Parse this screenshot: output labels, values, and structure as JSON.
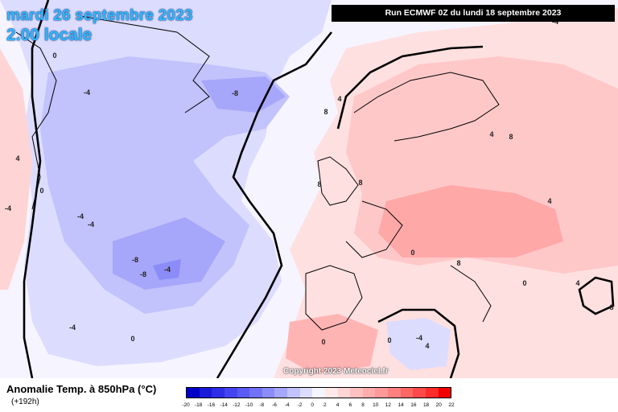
{
  "header": {
    "date_title": "mardi 26 septembre 2023",
    "time_title": "2.00 locale",
    "run_info": "Run ECMWF 0Z du lundi 18 septembre 2023"
  },
  "map": {
    "copyright": "Copyright 2023 Meteociel.fr",
    "contour_labels": [
      "0",
      "-4",
      "-8",
      "4",
      "8",
      "-4",
      "-4",
      "-8",
      "-8",
      "-4",
      "-4",
      "0",
      "0",
      "8",
      "8",
      "0",
      "8",
      "8",
      "4",
      "4",
      "-4",
      "4",
      "0",
      "-4",
      "0",
      "0",
      "-4",
      "4",
      "8",
      "4"
    ]
  },
  "legend": {
    "title": "Anomalie Temp. à 850hPa (°C)",
    "forecast_hour": "(+192h)",
    "tick_labels": [
      "-20",
      "-18",
      "-16",
      "-14",
      "-12",
      "-10",
      "-8",
      "-6",
      "-4",
      "-2",
      "0",
      "2",
      "4",
      "6",
      "8",
      "10",
      "12",
      "14",
      "16",
      "18",
      "20",
      "22"
    ],
    "colors": [
      "#0000c8",
      "#1a1ad8",
      "#2e2ee6",
      "#4444f0",
      "#5a5af4",
      "#7272f6",
      "#8c8cf8",
      "#a6a6fa",
      "#c2c2fc",
      "#dcdcfe",
      "#f4f4ff",
      "#ffe8e8",
      "#ffd4d4",
      "#ffc0c0",
      "#ffacac",
      "#ff9898",
      "#ff8080",
      "#ff6666",
      "#ff4a4a",
      "#ff2c2c",
      "#f00000"
    ]
  }
}
